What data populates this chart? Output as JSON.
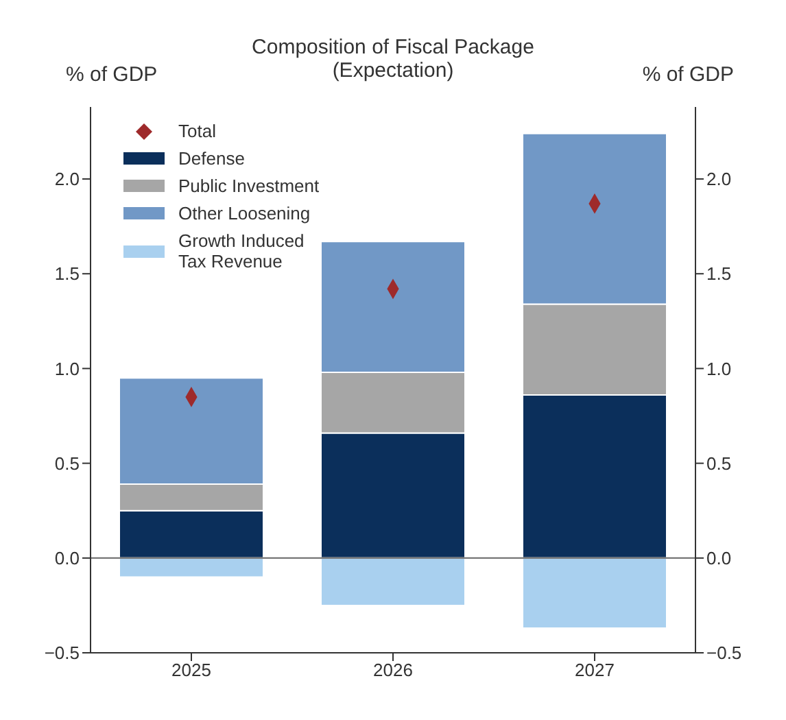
{
  "chart_data": {
    "type": "bar",
    "title": "Composition of Fiscal Package",
    "subtitle": "(Expectation)",
    "ylabel": "% of GDP",
    "y2label": "% of GDP",
    "categories": [
      "2025",
      "2026",
      "2027"
    ],
    "stacked": true,
    "series": [
      {
        "name": "Total",
        "type": "scatter",
        "marker": "diamond",
        "color": "#9e2a2b",
        "values": [
          0.85,
          1.42,
          1.87
        ]
      },
      {
        "name": "Defense",
        "color": "#0b2f5b",
        "values": [
          0.25,
          0.66,
          0.86
        ]
      },
      {
        "name": "Public Investment",
        "color": "#a6a6a6",
        "values": [
          0.14,
          0.32,
          0.48
        ]
      },
      {
        "name": "Other Loosening",
        "color": "#7198c6",
        "values": [
          0.56,
          0.69,
          0.9
        ]
      },
      {
        "name": "Growth Induced Tax Revenue",
        "color": "#a9d0ef",
        "values": [
          -0.1,
          -0.25,
          -0.37
        ]
      }
    ],
    "ylim": [
      -0.5,
      2.38
    ],
    "yticks": [
      {
        "value": -0.5,
        "label": "−0.5"
      },
      {
        "value": 0,
        "label": "0.0"
      },
      0.5,
      {
        "value": 1,
        "label": "1.0"
      },
      1.5,
      {
        "value": 2,
        "label": "2.0"
      }
    ],
    "y2lim": [
      -0.5,
      2.38
    ],
    "y2ticks": [
      {
        "value": -0.5,
        "label": "−0.5"
      },
      {
        "value": 0,
        "label": "0.0"
      },
      0.5,
      {
        "value": 1,
        "label": "1.0"
      },
      1.5,
      {
        "value": 2,
        "label": "2.0"
      }
    ],
    "ref_lines": [
      {
        "axis": "y",
        "value": 0,
        "color": "#666666"
      }
    ],
    "grid": false,
    "legend": "top left"
  }
}
